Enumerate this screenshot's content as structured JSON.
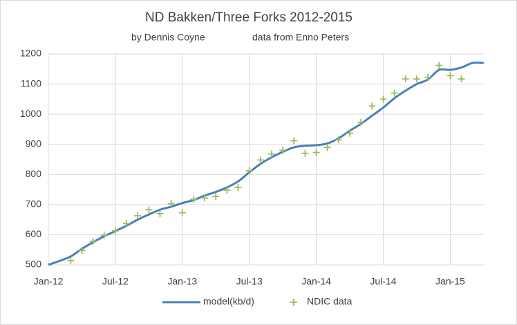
{
  "chart_data": {
    "type": "line",
    "title": "ND Bakken/Three Forks 2012-2015",
    "subtitle": [
      "by Dennis Coyne",
      "data from Enno Peters"
    ],
    "categories": [
      "Jan-12",
      null,
      null,
      null,
      null,
      null,
      "Jul-12",
      null,
      null,
      null,
      null,
      null,
      "Jan-13",
      null,
      null,
      null,
      null,
      null,
      "Jul-13",
      null,
      null,
      null,
      null,
      null,
      "Jan-14",
      null,
      null,
      null,
      null,
      null,
      "Jul-14",
      null,
      null,
      null,
      null,
      null,
      "Jan-15",
      null,
      null,
      null
    ],
    "series": [
      {
        "name": "model(kb/d)",
        "color": "#4a7ebb",
        "marker": "line",
        "values": [
          500,
          513,
          528,
          553,
          575,
          595,
          612,
          630,
          650,
          667,
          683,
          693,
          705,
          715,
          730,
          742,
          757,
          777,
          807,
          835,
          857,
          875,
          890,
          895,
          897,
          903,
          920,
          945,
          968,
          995,
          1022,
          1053,
          1078,
          1100,
          1115,
          1147,
          1147,
          1155,
          1170,
          1170
        ]
      },
      {
        "name": "NDIC data",
        "color": "#9bbb59",
        "marker": "plus",
        "values": [
          null,
          null,
          514,
          548,
          578,
          598,
          613,
          637,
          663,
          683,
          670,
          703,
          673,
          717,
          722,
          727,
          748,
          757,
          812,
          848,
          868,
          880,
          912,
          870,
          873,
          890,
          915,
          937,
          973,
          1027,
          1050,
          1070,
          1117,
          1117,
          1122,
          1162,
          1128,
          1117,
          null,
          null
        ]
      }
    ],
    "ylim": [
      500,
      1200
    ],
    "yticks": [
      500,
      600,
      700,
      800,
      900,
      1000,
      1100,
      1200
    ],
    "grid": true
  }
}
